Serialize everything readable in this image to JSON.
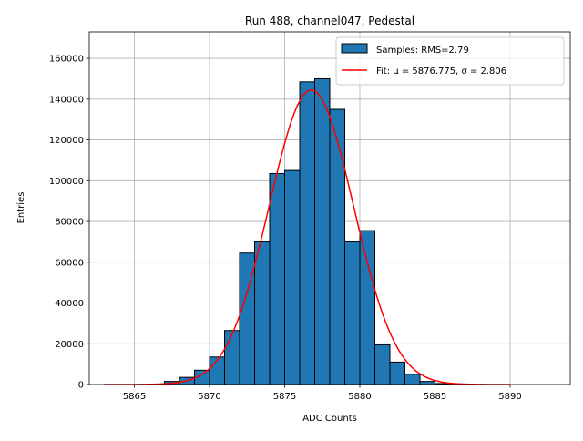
{
  "chart_data": {
    "type": "bar",
    "title": "Run 488, channel047, Pedestal",
    "xlabel": "ADC Counts",
    "ylabel": "Entries",
    "xlim": [
      5862.0,
      5894.0
    ],
    "ylim": [
      0,
      173000
    ],
    "grid": true,
    "x_ticks": [
      5865,
      5870,
      5875,
      5880,
      5885,
      5890
    ],
    "y_ticks": [
      0,
      20000,
      40000,
      60000,
      80000,
      100000,
      120000,
      140000,
      160000
    ],
    "histogram": {
      "name": "Samples: RMS=2.79",
      "color": "#1f77b4",
      "bin_width": 1.0,
      "bin_starts": [
        5864,
        5865,
        5866,
        5867,
        5868,
        5869,
        5870,
        5871,
        5872,
        5873,
        5874,
        5875,
        5876,
        5877,
        5878,
        5879,
        5880,
        5881,
        5882,
        5883,
        5884,
        5885,
        5886
      ],
      "values": [
        0,
        0,
        200,
        1500,
        3500,
        7000,
        13500,
        26500,
        64500,
        70000,
        103500,
        105000,
        148500,
        150000,
        135000,
        70000,
        75500,
        19500,
        11000,
        5000,
        1500,
        500,
        100
      ]
    },
    "fit": {
      "name": "Fit: μ = 5876.775, σ = 2.806",
      "color": "#ff0000",
      "mu": 5876.775,
      "sigma": 2.806,
      "amplitude": 144500,
      "x_range": [
        5863,
        5890
      ]
    },
    "legend_position": "top-right"
  }
}
